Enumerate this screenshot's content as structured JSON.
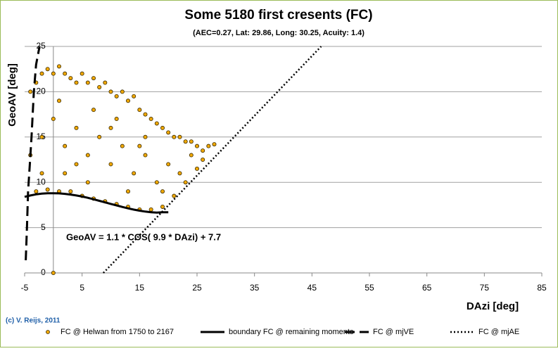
{
  "chart_data": {
    "type": "scatter",
    "title": "Some 5180 first cresents (FC)",
    "subtitle": "(AEC=0.27,  Lat: 29.86,  Long: 30.25, Acuity:  1.4)",
    "x_label": "DAzi [deg]",
    "y_label": "GeoAV [deg]",
    "annotation": "GeoAV = 1.1 * COS( 9.9 * DAzi) + 7.7",
    "credit": "(c) V. Reijs, 2011",
    "xlim": [
      -5,
      85
    ],
    "xticks": [
      -5,
      5,
      15,
      25,
      35,
      45,
      55,
      65,
      75,
      85
    ],
    "ylim": [
      0,
      25
    ],
    "yticks": [
      0,
      5,
      10,
      15,
      20,
      25
    ],
    "grid": true,
    "legend": "bottom",
    "series": [
      {
        "name": "FC @ Helwan from 1750 to 2167",
        "color": "#f0a800",
        "kind": "points",
        "x": [
          0,
          -4,
          -3,
          -2,
          -1,
          0,
          1,
          2,
          3,
          4,
          5,
          6,
          7,
          8,
          9,
          10,
          11,
          12,
          13,
          14,
          15,
          16,
          17,
          18,
          19,
          20,
          21,
          22,
          23,
          24,
          25,
          26,
          27,
          28,
          -3,
          -1,
          1,
          3,
          5,
          7,
          9,
          11,
          13,
          15,
          17,
          19,
          21,
          23,
          25,
          -4,
          -2,
          0,
          2,
          4,
          6,
          8,
          10,
          12,
          14,
          16,
          18,
          20,
          22,
          24,
          26,
          -2,
          1,
          4,
          7,
          10,
          13,
          16,
          19,
          2,
          6,
          11,
          15
        ],
        "values": [
          0,
          20,
          21,
          22,
          22.5,
          22,
          22.8,
          22,
          21.5,
          21,
          22,
          21,
          21.5,
          20.5,
          21,
          20,
          19.5,
          20,
          19,
          19.5,
          18,
          17.5,
          17,
          16.5,
          16,
          15.5,
          15,
          15,
          14.5,
          14.5,
          14,
          13.5,
          14,
          14.2,
          9,
          9.2,
          9,
          9,
          8.5,
          8.2,
          7.9,
          7.6,
          7.3,
          7,
          7,
          7.3,
          8.5,
          10,
          11.5,
          13,
          15,
          17,
          14,
          16,
          13,
          15,
          12,
          14,
          11,
          13,
          10,
          12,
          11,
          13,
          12.5,
          11,
          19,
          12,
          18,
          16,
          9,
          15,
          9,
          11,
          10,
          17,
          14
        ]
      },
      {
        "name": "boundary FC @ remaining moments",
        "color": "#000000",
        "kind": "solid",
        "x": [
          -5,
          -4,
          -3,
          -2,
          -1,
          0,
          1,
          2,
          3,
          4,
          5,
          6,
          7,
          8,
          9,
          10,
          11,
          12,
          13,
          14,
          15,
          16,
          17,
          18,
          19,
          20
        ],
        "values": [
          8.4,
          8.55,
          8.67,
          8.75,
          8.8,
          8.8,
          8.78,
          8.73,
          8.65,
          8.55,
          8.43,
          8.29,
          8.13,
          7.96,
          7.79,
          7.62,
          7.45,
          7.28,
          7.13,
          6.99,
          6.87,
          6.77,
          6.7,
          6.65,
          6.7,
          6.7
        ]
      },
      {
        "name": "FC @ mjVE",
        "color": "#000000",
        "kind": "dashed",
        "x": [
          -4.8,
          -4.6,
          -4.4,
          -4.1,
          -3.8,
          -3.4,
          -3,
          -2.4
        ],
        "values": [
          1.4,
          5,
          9,
          12,
          15,
          20,
          23,
          25
        ]
      },
      {
        "name": "FC @ mjAE",
        "color": "#000000",
        "kind": "dotted",
        "x": [
          8.7,
          46.6
        ],
        "values": [
          0,
          25
        ]
      }
    ]
  }
}
